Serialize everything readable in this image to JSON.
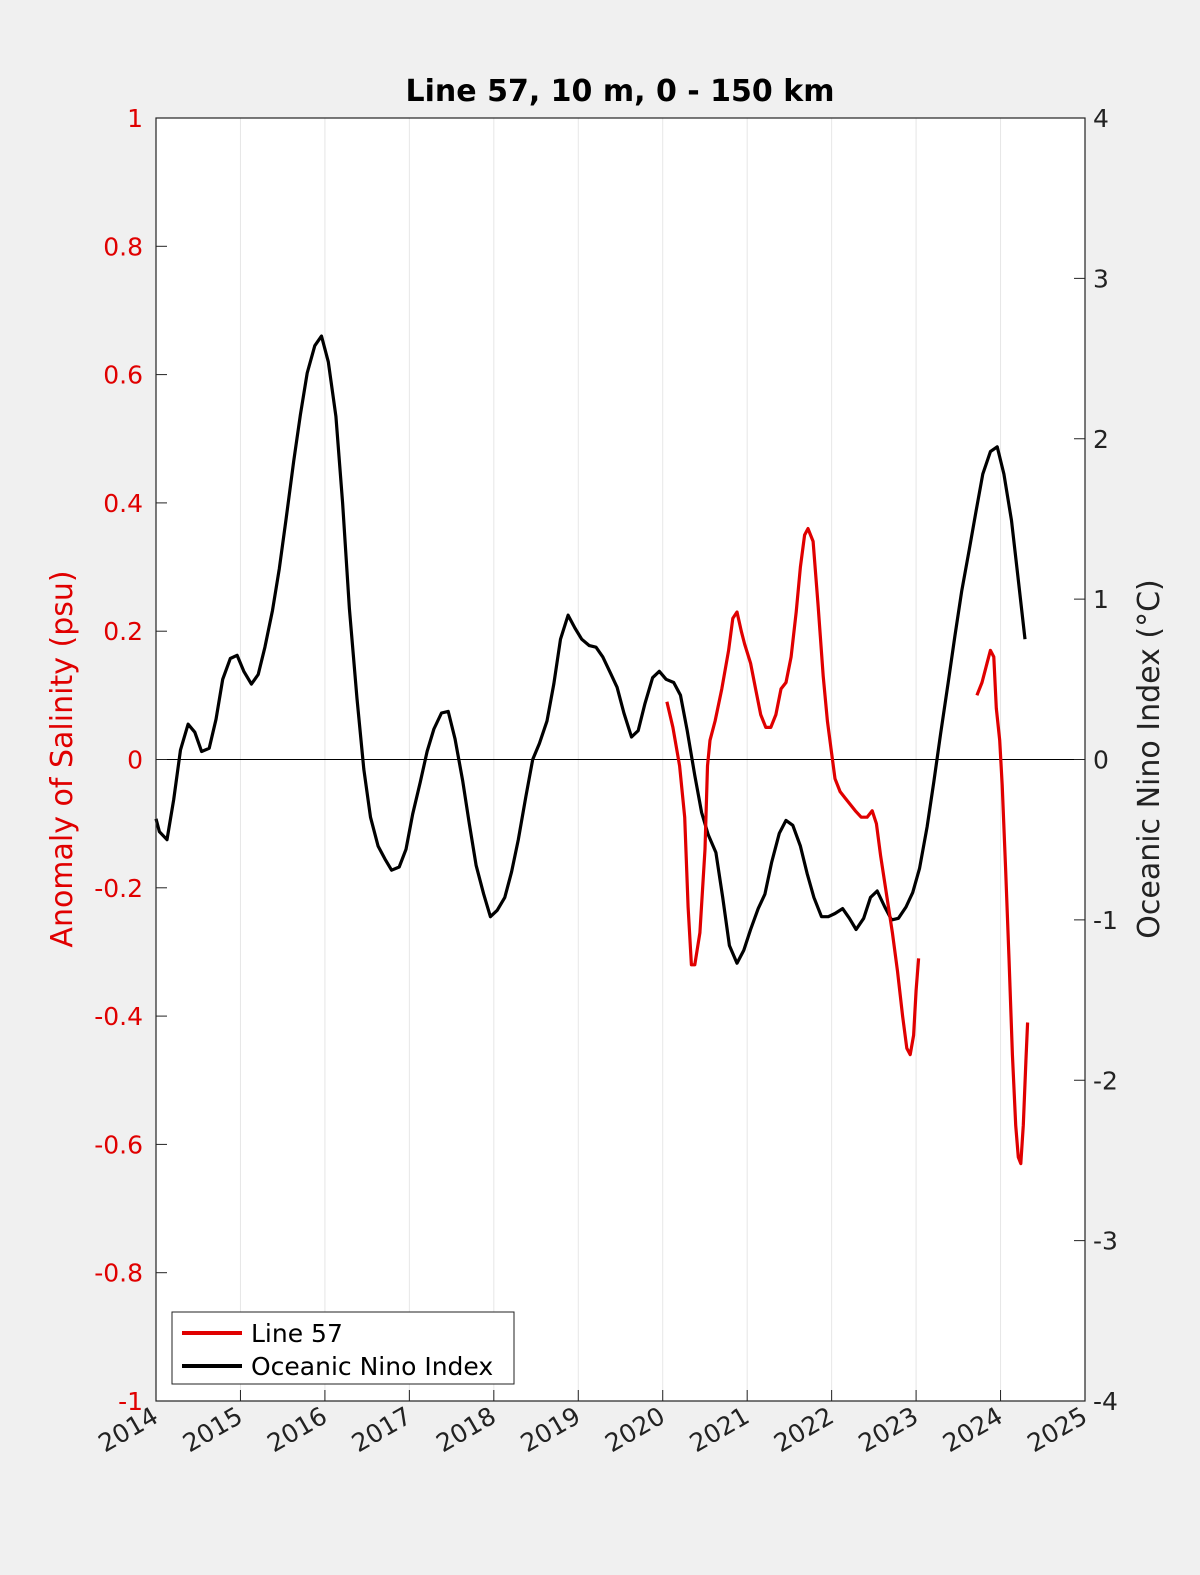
{
  "chart_data": {
    "type": "line",
    "title": "Line 57, 10 m, 0 - 150 km",
    "ylabel_left": "Anomaly of Salinity (psu)",
    "ylabel_right": "Oceanic Nino Index (°C)",
    "xlim": [
      2014,
      2025
    ],
    "ylim_left": [
      -1,
      1
    ],
    "ylim_right": [
      -4,
      4
    ],
    "x_ticks": [
      "2014",
      "2015",
      "2016",
      "2017",
      "2018",
      "2019",
      "2020",
      "2021",
      "2022",
      "2023",
      "2024",
      "2025"
    ],
    "x_tick_values": [
      2014,
      2015,
      2016,
      2017,
      2018,
      2019,
      2020,
      2021,
      2022,
      2023,
      2024,
      2025
    ],
    "y_ticks_left": [
      "1",
      "0.8",
      "0.6",
      "0.4",
      "0.2",
      "0",
      "-0.2",
      "-0.4",
      "-0.6",
      "-0.8",
      "-1"
    ],
    "y_tick_values_left": [
      1,
      0.8,
      0.6,
      0.4,
      0.2,
      0,
      -0.2,
      -0.4,
      -0.6,
      -0.8,
      -1
    ],
    "y_ticks_right": [
      "4",
      "3",
      "2",
      "1",
      "0",
      "-1",
      "-2",
      "-3",
      "-4"
    ],
    "y_tick_values_right": [
      4,
      3,
      2,
      1,
      0,
      -1,
      -2,
      -3,
      -4
    ],
    "grid": "vertical",
    "zero_line": true,
    "legend": {
      "position": "bottom-left",
      "entries": [
        "Line 57",
        "Oceanic Nino Index"
      ]
    },
    "colors": {
      "line57": "#e00000",
      "oni": "#000000",
      "left_axis": "#e00000",
      "right_axis": "#222222"
    },
    "series": [
      {
        "name": "Line 57",
        "axis": "left",
        "segments": [
          [
            [
              2020.05,
              0.09
            ],
            [
              2020.12,
              0.05
            ],
            [
              2020.2,
              -0.01
            ],
            [
              2020.26,
              -0.09
            ],
            [
              2020.3,
              -0.23
            ],
            [
              2020.34,
              -0.32
            ],
            [
              2020.38,
              -0.32
            ],
            [
              2020.44,
              -0.27
            ],
            [
              2020.5,
              -0.14
            ],
            [
              2020.53,
              -0.01
            ],
            [
              2020.56,
              0.03
            ],
            [
              2020.62,
              0.06
            ],
            [
              2020.7,
              0.11
            ],
            [
              2020.78,
              0.17
            ],
            [
              2020.83,
              0.22
            ],
            [
              2020.88,
              0.23
            ],
            [
              2020.93,
              0.2
            ],
            [
              2020.97,
              0.18
            ],
            [
              2021.04,
              0.15
            ],
            [
              2021.1,
              0.11
            ],
            [
              2021.16,
              0.07
            ],
            [
              2021.22,
              0.05
            ],
            [
              2021.28,
              0.05
            ],
            [
              2021.34,
              0.07
            ],
            [
              2021.4,
              0.11
            ],
            [
              2021.46,
              0.12
            ],
            [
              2021.52,
              0.16
            ],
            [
              2021.58,
              0.23
            ],
            [
              2021.63,
              0.3
            ],
            [
              2021.68,
              0.35
            ],
            [
              2021.72,
              0.36
            ],
            [
              2021.78,
              0.34
            ],
            [
              2021.84,
              0.24
            ],
            [
              2021.9,
              0.13
            ],
            [
              2021.95,
              0.06
            ],
            [
              2022.0,
              0.01
            ],
            [
              2022.04,
              -0.03
            ],
            [
              2022.1,
              -0.05
            ],
            [
              2022.16,
              -0.06
            ],
            [
              2022.22,
              -0.07
            ],
            [
              2022.28,
              -0.08
            ],
            [
              2022.35,
              -0.09
            ],
            [
              2022.42,
              -0.09
            ],
            [
              2022.48,
              -0.08
            ],
            [
              2022.53,
              -0.1
            ],
            [
              2022.58,
              -0.15
            ],
            [
              2022.65,
              -0.21
            ],
            [
              2022.72,
              -0.27
            ],
            [
              2022.78,
              -0.33
            ],
            [
              2022.84,
              -0.4
            ],
            [
              2022.89,
              -0.45
            ],
            [
              2022.93,
              -0.46
            ],
            [
              2022.97,
              -0.43
            ],
            [
              2023.0,
              -0.36
            ],
            [
              2023.03,
              -0.31
            ]
          ],
          [
            [
              2023.72,
              0.1
            ],
            [
              2023.78,
              0.12
            ],
            [
              2023.84,
              0.15
            ],
            [
              2023.88,
              0.17
            ],
            [
              2023.92,
              0.16
            ],
            [
              2023.95,
              0.08
            ],
            [
              2023.99,
              0.03
            ],
            [
              2024.02,
              -0.04
            ],
            [
              2024.06,
              -0.17
            ],
            [
              2024.1,
              -0.31
            ],
            [
              2024.14,
              -0.46
            ],
            [
              2024.18,
              -0.57
            ],
            [
              2024.21,
              -0.62
            ],
            [
              2024.24,
              -0.63
            ],
            [
              2024.27,
              -0.57
            ],
            [
              2024.3,
              -0.47
            ],
            [
              2024.32,
              -0.41
            ]
          ]
        ]
      },
      {
        "name": "Oceanic Nino Index",
        "axis": "right",
        "points": [
          [
            2014.0,
            -0.37
          ],
          [
            2014.04,
            -0.45
          ],
          [
            2014.13,
            -0.5
          ],
          [
            2014.21,
            -0.25
          ],
          [
            2014.29,
            0.06
          ],
          [
            2014.38,
            0.22
          ],
          [
            2014.46,
            0.17
          ],
          [
            2014.54,
            0.05
          ],
          [
            2014.63,
            0.07
          ],
          [
            2014.71,
            0.25
          ],
          [
            2014.79,
            0.5
          ],
          [
            2014.88,
            0.63
          ],
          [
            2014.96,
            0.65
          ],
          [
            2015.04,
            0.55
          ],
          [
            2015.13,
            0.47
          ],
          [
            2015.21,
            0.53
          ],
          [
            2015.29,
            0.7
          ],
          [
            2015.38,
            0.93
          ],
          [
            2015.46,
            1.19
          ],
          [
            2015.54,
            1.5
          ],
          [
            2015.63,
            1.86
          ],
          [
            2015.71,
            2.15
          ],
          [
            2015.79,
            2.41
          ],
          [
            2015.88,
            2.58
          ],
          [
            2015.96,
            2.64
          ],
          [
            2016.04,
            2.48
          ],
          [
            2016.13,
            2.14
          ],
          [
            2016.21,
            1.6
          ],
          [
            2016.29,
            0.94
          ],
          [
            2016.38,
            0.38
          ],
          [
            2016.46,
            -0.06
          ],
          [
            2016.54,
            -0.36
          ],
          [
            2016.63,
            -0.54
          ],
          [
            2016.71,
            -0.62
          ],
          [
            2016.79,
            -0.69
          ],
          [
            2016.88,
            -0.67
          ],
          [
            2016.96,
            -0.56
          ],
          [
            2017.04,
            -0.34
          ],
          [
            2017.13,
            -0.14
          ],
          [
            2017.21,
            0.05
          ],
          [
            2017.29,
            0.19
          ],
          [
            2017.38,
            0.29
          ],
          [
            2017.46,
            0.3
          ],
          [
            2017.54,
            0.13
          ],
          [
            2017.63,
            -0.13
          ],
          [
            2017.71,
            -0.4
          ],
          [
            2017.79,
            -0.66
          ],
          [
            2017.88,
            -0.84
          ],
          [
            2017.96,
            -0.98
          ],
          [
            2018.04,
            -0.94
          ],
          [
            2018.13,
            -0.86
          ],
          [
            2018.21,
            -0.7
          ],
          [
            2018.29,
            -0.5
          ],
          [
            2018.38,
            -0.23
          ],
          [
            2018.46,
            0.0
          ],
          [
            2018.54,
            0.1
          ],
          [
            2018.63,
            0.24
          ],
          [
            2018.71,
            0.47
          ],
          [
            2018.79,
            0.75
          ],
          [
            2018.88,
            0.9
          ],
          [
            2018.96,
            0.82
          ],
          [
            2019.04,
            0.75
          ],
          [
            2019.13,
            0.71
          ],
          [
            2019.21,
            0.7
          ],
          [
            2019.29,
            0.64
          ],
          [
            2019.38,
            0.54
          ],
          [
            2019.46,
            0.45
          ],
          [
            2019.54,
            0.29
          ],
          [
            2019.63,
            0.14
          ],
          [
            2019.71,
            0.18
          ],
          [
            2019.79,
            0.35
          ],
          [
            2019.88,
            0.51
          ],
          [
            2019.96,
            0.55
          ],
          [
            2020.04,
            0.5
          ],
          [
            2020.13,
            0.48
          ],
          [
            2020.21,
            0.4
          ],
          [
            2020.29,
            0.18
          ],
          [
            2020.38,
            -0.1
          ],
          [
            2020.46,
            -0.33
          ],
          [
            2020.54,
            -0.47
          ],
          [
            2020.63,
            -0.58
          ],
          [
            2020.71,
            -0.86
          ],
          [
            2020.79,
            -1.16
          ],
          [
            2020.88,
            -1.27
          ],
          [
            2020.96,
            -1.19
          ],
          [
            2021.04,
            -1.06
          ],
          [
            2021.13,
            -0.93
          ],
          [
            2021.21,
            -0.84
          ],
          [
            2021.29,
            -0.64
          ],
          [
            2021.38,
            -0.46
          ],
          [
            2021.46,
            -0.38
          ],
          [
            2021.54,
            -0.41
          ],
          [
            2021.63,
            -0.54
          ],
          [
            2021.71,
            -0.71
          ],
          [
            2021.79,
            -0.86
          ],
          [
            2021.88,
            -0.98
          ],
          [
            2021.96,
            -0.98
          ],
          [
            2022.04,
            -0.96
          ],
          [
            2022.13,
            -0.93
          ],
          [
            2022.21,
            -0.99
          ],
          [
            2022.29,
            -1.06
          ],
          [
            2022.38,
            -0.99
          ],
          [
            2022.46,
            -0.86
          ],
          [
            2022.54,
            -0.82
          ],
          [
            2022.63,
            -0.92
          ],
          [
            2022.71,
            -1.0
          ],
          [
            2022.79,
            -0.99
          ],
          [
            2022.88,
            -0.92
          ],
          [
            2022.96,
            -0.83
          ],
          [
            2023.04,
            -0.68
          ],
          [
            2023.13,
            -0.42
          ],
          [
            2023.21,
            -0.14
          ],
          [
            2023.29,
            0.16
          ],
          [
            2023.38,
            0.48
          ],
          [
            2023.46,
            0.77
          ],
          [
            2023.54,
            1.05
          ],
          [
            2023.63,
            1.31
          ],
          [
            2023.71,
            1.55
          ],
          [
            2023.79,
            1.78
          ],
          [
            2023.88,
            1.92
          ],
          [
            2023.96,
            1.95
          ],
          [
            2024.04,
            1.78
          ],
          [
            2024.13,
            1.49
          ],
          [
            2024.21,
            1.12
          ],
          [
            2024.29,
            0.75
          ]
        ]
      }
    ]
  }
}
